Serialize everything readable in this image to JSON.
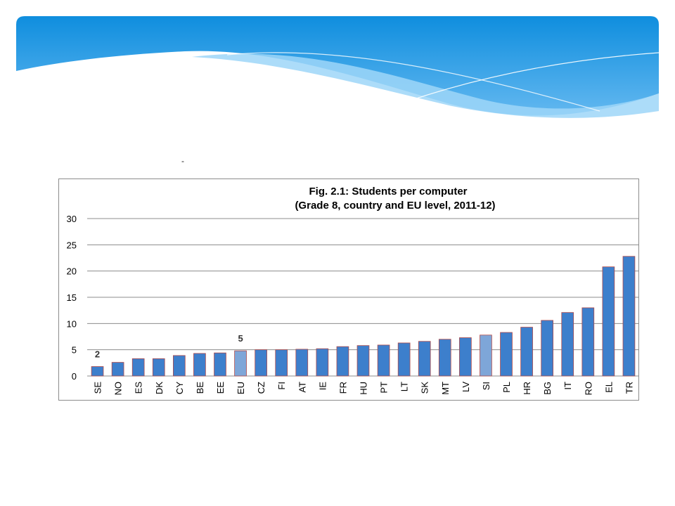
{
  "decor": {
    "dash": "-"
  },
  "colors": {
    "banner_top": "#0f8ede",
    "banner_bottom": "#63b8f0",
    "bar_fill": "#3d7fcc",
    "bar_fill_highlight": "#7ea6d8",
    "bar_stroke": "#b04a4a",
    "grid": "#8c8c8c"
  },
  "chart_data": {
    "type": "bar",
    "title": "Fig. 2.1: Students per computer",
    "subtitle": "(Grade 8, country and EU level,  2011-12)",
    "xlabel": "",
    "ylabel": "",
    "ylim": [
      0,
      30
    ],
    "yticks": [
      "0",
      "5",
      "10",
      "15",
      "20",
      "25",
      "30"
    ],
    "grid": true,
    "legend": "none",
    "categories": [
      "SE",
      "NO",
      "ES",
      "DK",
      "CY",
      "BE",
      "EE",
      "EU",
      "CZ",
      "FI",
      "AT",
      "IE",
      "FR",
      "HU",
      "PT",
      "LT",
      "SK",
      "MT",
      "LV",
      "SI",
      "PL",
      "HR",
      "BG",
      "IT",
      "RO",
      "EL",
      "TR"
    ],
    "values": [
      1.8,
      2.6,
      3.3,
      3.3,
      3.9,
      4.3,
      4.4,
      4.8,
      5.0,
      5.0,
      5.1,
      5.2,
      5.6,
      5.8,
      5.9,
      6.3,
      6.6,
      7.0,
      7.3,
      7.8,
      8.3,
      9.3,
      10.6,
      12.1,
      13.0,
      20.8,
      22.8
    ],
    "highlighted": [
      "EU",
      "SI"
    ],
    "data_labels": [
      {
        "category": "SE",
        "text": "2"
      },
      {
        "category": "EU",
        "text": "5"
      }
    ]
  }
}
